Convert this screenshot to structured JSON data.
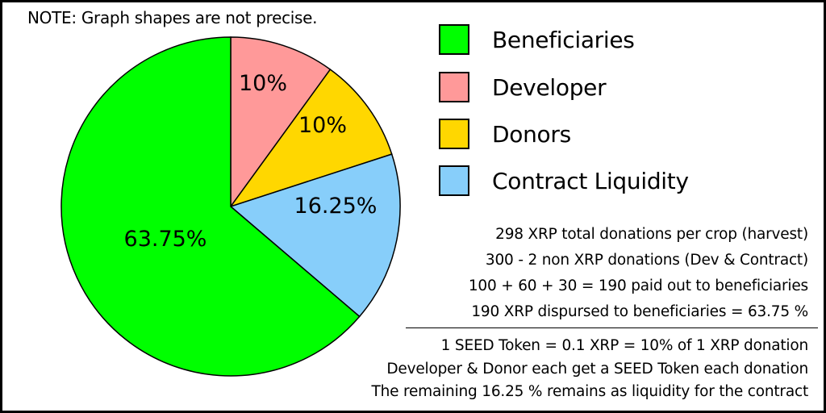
{
  "chart_data": {
    "type": "pie",
    "title": "",
    "note": "NOTE: Graph shapes are not precise.",
    "start": "top, clockwise",
    "slices": [
      {
        "name": "Developer",
        "value": 10,
        "label": "10%",
        "color": "#FF9999"
      },
      {
        "name": "Donors",
        "value": 10,
        "label": "10%",
        "color": "#FFD700"
      },
      {
        "name": "Contract Liquidity",
        "value": 16.25,
        "label": "16.25%",
        "color": "#87CEFA"
      },
      {
        "name": "Beneficiaries",
        "value": 63.75,
        "label": "63.75%",
        "color": "#00FF00"
      }
    ],
    "legend": {
      "placement": "top-right",
      "entries": [
        {
          "label": "Beneficiaries",
          "color": "#00FF00"
        },
        {
          "label": "Developer",
          "color": "#FF9999"
        },
        {
          "label": "Donors",
          "color": "#FFD700"
        },
        {
          "label": "Contract Liquidity",
          "color": "#87CEFA"
        }
      ]
    },
    "annotations": [
      "298 XRP total donations per crop (harvest)",
      "300 - 2 non XRP donations (Dev & Contract)",
      "100 + 60 + 30 = 190 paid out to beneficiaries",
      "190 XRP dispursed to beneficiaries = 63.75 %",
      "1 SEED Token = 0.1 XRP = 10% of 1 XRP donation",
      "Developer & Donor each get a SEED Token each donation",
      "The remaining 16.25 % remains as liquidity for the contract"
    ]
  }
}
